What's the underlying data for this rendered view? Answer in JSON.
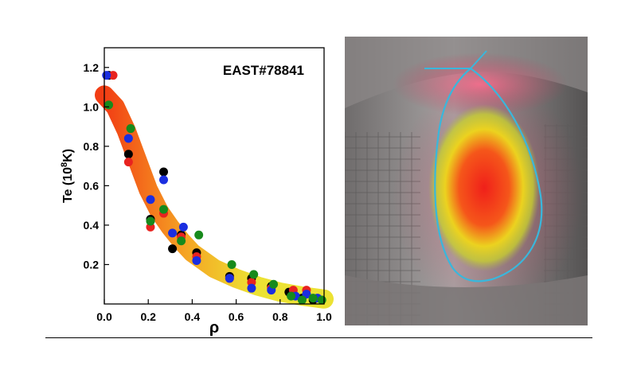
{
  "figure": {
    "photo_description": "EAST tokamak vessel interior with overlaid temperature contour and plasma boundary"
  },
  "colors": {
    "series": [
      "#000000",
      "#e8231f",
      "#1a2ee0",
      "#178a1c"
    ],
    "band_core": "#f23d14",
    "band_edge": "#ece233",
    "boundary": "#39b7dc"
  },
  "chart_data": {
    "type": "scatter",
    "title": "EAST#78841",
    "xlabel": "ρ",
    "ylabel": "Te (10",
    "ylabel_exp": "8",
    "ylabel_tail": "K)",
    "xlim": [
      0.0,
      1.0
    ],
    "ylim": [
      0.0,
      1.3
    ],
    "xticks": [
      "0.0",
      "0.2",
      "0.4",
      "0.6",
      "0.8",
      "1.0"
    ],
    "yticks": [
      "0.2",
      "0.4",
      "0.6",
      "0.8",
      "1.0",
      "1.2"
    ],
    "grid": false,
    "band": {
      "x": [
        0.0,
        0.05,
        0.1,
        0.15,
        0.2,
        0.25,
        0.3,
        0.35,
        0.4,
        0.5,
        0.6,
        0.7,
        0.8,
        0.9,
        1.0
      ],
      "y": [
        1.06,
        1.0,
        0.88,
        0.73,
        0.58,
        0.47,
        0.39,
        0.32,
        0.26,
        0.18,
        0.13,
        0.09,
        0.06,
        0.04,
        0.025
      ]
    },
    "series": [
      {
        "color": "#000000",
        "x": [
          0.02,
          0.11,
          0.21,
          0.27,
          0.31,
          0.35,
          0.42,
          0.57,
          0.67,
          0.76,
          0.84,
          0.9,
          0.95
        ],
        "y": [
          1.16,
          0.76,
          0.43,
          0.67,
          0.28,
          0.35,
          0.26,
          0.14,
          0.13,
          0.09,
          0.06,
          0.03,
          0.02
        ]
      },
      {
        "color": "#e8231f",
        "x": [
          0.04,
          0.11,
          0.21,
          0.27,
          0.35,
          0.42,
          0.57,
          0.67,
          0.76,
          0.86,
          0.92
        ],
        "y": [
          1.16,
          0.72,
          0.39,
          0.46,
          0.34,
          0.24,
          0.13,
          0.11,
          0.08,
          0.07,
          0.07
        ]
      },
      {
        "color": "#1a2ee0",
        "x": [
          0.01,
          0.11,
          0.21,
          0.27,
          0.31,
          0.36,
          0.42,
          0.57,
          0.67,
          0.76,
          0.87,
          0.92,
          0.97
        ],
        "y": [
          1.16,
          0.84,
          0.53,
          0.63,
          0.36,
          0.39,
          0.22,
          0.13,
          0.08,
          0.07,
          0.04,
          0.05,
          0.03
        ]
      },
      {
        "color": "#178a1c",
        "x": [
          0.02,
          0.12,
          0.21,
          0.27,
          0.35,
          0.43,
          0.58,
          0.68,
          0.77,
          0.85,
          0.9,
          0.95,
          0.99
        ],
        "y": [
          1.01,
          0.89,
          0.42,
          0.48,
          0.32,
          0.35,
          0.2,
          0.15,
          0.1,
          0.04,
          0.02,
          0.03,
          0.02
        ]
      }
    ]
  }
}
